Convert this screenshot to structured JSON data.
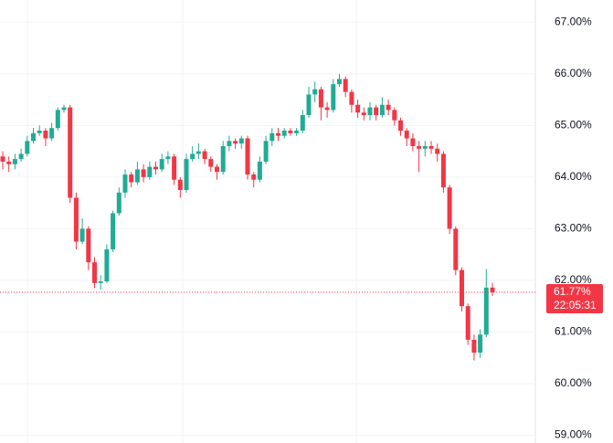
{
  "chart_data": {
    "type": "candlestick",
    "ylim": [
      58.85,
      67.43
    ],
    "yticks": [
      {
        "value": 59,
        "label": "59.00%"
      },
      {
        "value": 60,
        "label": "60.00%"
      },
      {
        "value": 61,
        "label": "61.00%"
      },
      {
        "value": 62,
        "label": "62.00%"
      },
      {
        "value": 63,
        "label": "63.00%"
      },
      {
        "value": 64,
        "label": "64.00%"
      },
      {
        "value": 65,
        "label": "65.00%"
      },
      {
        "value": 66,
        "label": "66.00%"
      },
      {
        "value": 67,
        "label": "67.00%"
      }
    ],
    "grid": true,
    "up_color": "#22ab94",
    "down_color": "#f23645",
    "open": [
      64.4,
      64.3,
      64.25,
      64.35,
      64.45,
      64.7,
      64.85,
      64.9,
      64.75,
      64.95,
      65.3,
      65.35,
      63.6,
      62.75,
      63.0,
      62.35,
      61.95,
      61.98,
      62.6,
      63.3,
      63.7,
      64.05,
      63.9,
      64.15,
      64.0,
      64.2,
      64.15,
      64.35,
      64.4,
      63.95,
      63.75,
      64.35,
      64.45,
      64.5,
      64.35,
      64.2,
      64.1,
      64.6,
      64.7,
      64.65,
      64.75,
      64.05,
      63.95,
      64.3,
      64.7,
      64.85,
      64.8,
      64.9,
      64.85,
      64.9,
      65.2,
      65.6,
      65.7,
      65.35,
      65.3,
      65.8,
      65.9,
      65.65,
      65.4,
      65.25,
      65.2,
      65.35,
      65.2,
      65.4,
      65.3,
      65.1,
      64.9,
      64.75,
      64.6,
      64.55,
      64.6,
      64.55,
      64.45,
      63.8,
      63.0,
      62.2,
      61.5,
      60.85,
      60.6,
      60.95,
      61.86
    ],
    "high": [
      64.5,
      64.4,
      64.45,
      64.55,
      64.8,
      64.95,
      65.0,
      64.95,
      65.05,
      65.35,
      65.4,
      65.4,
      63.7,
      63.2,
      63.05,
      62.45,
      62.1,
      62.7,
      63.35,
      63.8,
      64.15,
      64.1,
      64.3,
      64.25,
      64.3,
      64.3,
      64.45,
      64.5,
      64.45,
      64.0,
      64.45,
      64.6,
      64.65,
      64.55,
      64.4,
      64.25,
      64.7,
      64.8,
      64.75,
      64.8,
      64.8,
      64.1,
      64.4,
      64.8,
      64.95,
      64.95,
      64.95,
      64.95,
      64.95,
      65.3,
      65.75,
      65.85,
      65.75,
      65.45,
      65.9,
      66.0,
      65.95,
      65.7,
      65.5,
      65.35,
      65.45,
      65.4,
      65.55,
      65.5,
      65.35,
      65.15,
      64.95,
      64.85,
      64.7,
      64.7,
      64.7,
      64.65,
      64.5,
      63.85,
      63.05,
      62.25,
      61.55,
      60.95,
      61.05,
      62.22,
      61.95
    ],
    "low": [
      64.15,
      64.1,
      64.15,
      64.3,
      64.4,
      64.65,
      64.8,
      64.6,
      64.7,
      64.9,
      65.25,
      63.5,
      62.6,
      62.7,
      62.2,
      61.85,
      61.82,
      61.95,
      62.55,
      63.25,
      63.6,
      63.8,
      63.85,
      63.9,
      63.95,
      64.05,
      64.1,
      64.25,
      63.85,
      63.6,
      63.7,
      64.3,
      64.35,
      64.25,
      64.1,
      63.95,
      64.05,
      64.5,
      64.55,
      64.55,
      63.95,
      63.8,
      63.9,
      64.25,
      64.6,
      64.7,
      64.75,
      64.8,
      64.8,
      64.85,
      65.15,
      65.45,
      65.1,
      65.15,
      65.25,
      65.75,
      65.55,
      65.25,
      65.15,
      65.1,
      65.1,
      65.1,
      65.15,
      65.2,
      65.0,
      64.8,
      64.6,
      64.5,
      64.1,
      64.4,
      64.45,
      64.3,
      63.7,
      62.9,
      62.1,
      61.4,
      60.75,
      60.45,
      60.5,
      60.9,
      61.7
    ],
    "close": [
      64.3,
      64.25,
      64.35,
      64.45,
      64.7,
      64.85,
      64.9,
      64.75,
      64.95,
      65.3,
      65.35,
      63.6,
      62.75,
      63.0,
      62.35,
      61.95,
      61.98,
      62.6,
      63.3,
      63.7,
      64.05,
      63.9,
      64.15,
      64.0,
      64.2,
      64.15,
      64.35,
      64.4,
      63.95,
      63.75,
      64.35,
      64.45,
      64.5,
      64.35,
      64.2,
      64.1,
      64.6,
      64.7,
      64.65,
      64.75,
      64.05,
      63.95,
      64.3,
      64.7,
      64.85,
      64.8,
      64.9,
      64.85,
      64.9,
      65.2,
      65.6,
      65.7,
      65.35,
      65.3,
      65.8,
      65.9,
      65.65,
      65.4,
      65.25,
      65.2,
      65.35,
      65.2,
      65.4,
      65.3,
      65.1,
      64.9,
      64.75,
      64.6,
      64.55,
      64.6,
      64.55,
      64.45,
      63.8,
      63.0,
      62.2,
      61.5,
      60.85,
      60.6,
      60.95,
      61.86,
      61.77
    ],
    "last_price": {
      "value": 61.77,
      "label": "61.77%"
    },
    "countdown": "22:05:31"
  }
}
